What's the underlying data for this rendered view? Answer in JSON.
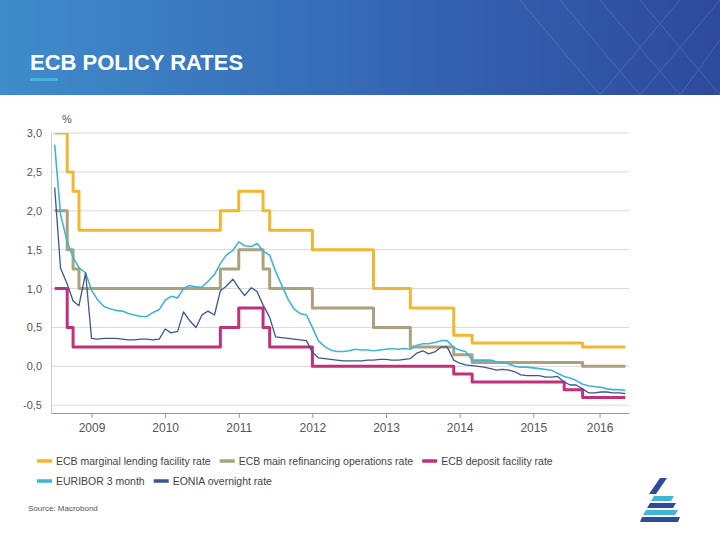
{
  "chart_data": {
    "type": "line",
    "title": "ECB POLICY RATES",
    "y_label": "%",
    "source": "Source: Macrobond",
    "legend": "bottom",
    "grid": true,
    "xlim": [
      2008.95,
      2016.8
    ],
    "xticks": [
      {
        "value": 2009.5,
        "label": "2009"
      },
      {
        "value": 2010.5,
        "label": "2010"
      },
      {
        "value": 2011.5,
        "label": "2011"
      },
      {
        "value": 2012.5,
        "label": "2012"
      },
      {
        "value": 2013.5,
        "label": "2013"
      },
      {
        "value": 2014.5,
        "label": "2014"
      },
      {
        "value": 2015.5,
        "label": "2015"
      },
      {
        "value": 2016.4,
        "label": "2016"
      }
    ],
    "ylim": [
      -0.6,
      3.0
    ],
    "yticks": [
      {
        "value": 3.0,
        "label": "3,0"
      },
      {
        "value": 2.5,
        "label": "2,5"
      },
      {
        "value": 2.0,
        "label": "2,0"
      },
      {
        "value": 1.5,
        "label": "1,5"
      },
      {
        "value": 1.0,
        "label": "1,0"
      },
      {
        "value": 0.5,
        "label": "0,5"
      },
      {
        "value": 0,
        "label": "0,0"
      },
      {
        "value": -0.5,
        "label": "-0,5"
      }
    ],
    "x": [
      2009,
      2009.08,
      2009.17,
      2009.25,
      2009.33,
      2009.42,
      2009.5,
      2009.58,
      2009.67,
      2009.75,
      2009.83,
      2009.92,
      2010,
      2010.08,
      2010.17,
      2010.25,
      2010.33,
      2010.42,
      2010.5,
      2010.58,
      2010.67,
      2010.75,
      2010.83,
      2010.92,
      2011,
      2011.08,
      2011.17,
      2011.25,
      2011.33,
      2011.42,
      2011.5,
      2011.58,
      2011.67,
      2011.75,
      2011.83,
      2011.92,
      2012,
      2012.08,
      2012.17,
      2012.25,
      2012.33,
      2012.42,
      2012.5,
      2012.58,
      2012.67,
      2012.75,
      2012.83,
      2012.92,
      2013,
      2013.08,
      2013.17,
      2013.25,
      2013.33,
      2013.42,
      2013.5,
      2013.58,
      2013.67,
      2013.75,
      2013.83,
      2013.92,
      2014,
      2014.08,
      2014.17,
      2014.25,
      2014.33,
      2014.42,
      2014.5,
      2014.58,
      2014.67,
      2014.75,
      2014.83,
      2014.92,
      2015,
      2015.08,
      2015.17,
      2015.25,
      2015.33,
      2015.42,
      2015.5,
      2015.58,
      2015.67,
      2015.75,
      2015.83,
      2015.92,
      2016,
      2016.08,
      2016.17,
      2016.25,
      2016.33,
      2016.42,
      2016.5,
      2016.58,
      2016.67,
      2016.75
    ],
    "series": [
      {
        "name": "ECB marginal lending facility rate",
        "color": "#f2b631",
        "type": "step",
        "values": [
          3,
          3,
          2.5,
          2.25,
          1.75,
          1.75,
          1.75,
          1.75,
          1.75,
          1.75,
          1.75,
          1.75,
          1.75,
          1.75,
          1.75,
          1.75,
          1.75,
          1.75,
          1.75,
          1.75,
          1.75,
          1.75,
          1.75,
          1.75,
          1.75,
          1.75,
          1.75,
          2,
          2,
          2,
          2.25,
          2.25,
          2.25,
          2.25,
          2,
          1.75,
          1.75,
          1.75,
          1.75,
          1.75,
          1.75,
          1.75,
          1.5,
          1.5,
          1.5,
          1.5,
          1.5,
          1.5,
          1.5,
          1.5,
          1.5,
          1.5,
          1,
          1,
          1,
          1,
          1,
          1,
          0.75,
          0.75,
          0.75,
          0.75,
          0.75,
          0.75,
          0.75,
          0.4,
          0.4,
          0.4,
          0.3,
          0.3,
          0.3,
          0.3,
          0.3,
          0.3,
          0.3,
          0.3,
          0.3,
          0.3,
          0.3,
          0.3,
          0.3,
          0.3,
          0.3,
          0.3,
          0.3,
          0.3,
          0.25,
          0.25,
          0.25,
          0.25,
          0.25,
          0.25,
          0.25,
          0.25
        ]
      },
      {
        "name": "ECB main refinancing operations rate",
        "color": "#a9a27c",
        "type": "step",
        "values": [
          2,
          2,
          1.5,
          1.25,
          1,
          1,
          1,
          1,
          1,
          1,
          1,
          1,
          1,
          1,
          1,
          1,
          1,
          1,
          1,
          1,
          1,
          1,
          1,
          1,
          1,
          1,
          1,
          1.25,
          1.25,
          1.25,
          1.5,
          1.5,
          1.5,
          1.5,
          1.25,
          1,
          1,
          1,
          1,
          1,
          1,
          1,
          0.75,
          0.75,
          0.75,
          0.75,
          0.75,
          0.75,
          0.75,
          0.75,
          0.75,
          0.75,
          0.5,
          0.5,
          0.5,
          0.5,
          0.5,
          0.5,
          0.25,
          0.25,
          0.25,
          0.25,
          0.25,
          0.25,
          0.25,
          0.15,
          0.15,
          0.15,
          0.05,
          0.05,
          0.05,
          0.05,
          0.05,
          0.05,
          0.05,
          0.05,
          0.05,
          0.05,
          0.05,
          0.05,
          0.05,
          0.05,
          0.05,
          0.05,
          0.05,
          0.05,
          0,
          0,
          0,
          0,
          0,
          0,
          0,
          0
        ]
      },
      {
        "name": "ECB deposit facility rate",
        "color": "#c1307b",
        "type": "step",
        "values": [
          1,
          1,
          0.5,
          0.25,
          0.25,
          0.25,
          0.25,
          0.25,
          0.25,
          0.25,
          0.25,
          0.25,
          0.25,
          0.25,
          0.25,
          0.25,
          0.25,
          0.25,
          0.25,
          0.25,
          0.25,
          0.25,
          0.25,
          0.25,
          0.25,
          0.25,
          0.25,
          0.5,
          0.5,
          0.5,
          0.75,
          0.75,
          0.75,
          0.75,
          0.5,
          0.25,
          0.25,
          0.25,
          0.25,
          0.25,
          0.25,
          0.25,
          0,
          0,
          0,
          0,
          0,
          0,
          0,
          0,
          0,
          0,
          0,
          0,
          0,
          0,
          0,
          0,
          0,
          0,
          0,
          0,
          0,
          0,
          0,
          -0.1,
          -0.1,
          -0.1,
          -0.2,
          -0.2,
          -0.2,
          -0.2,
          -0.2,
          -0.2,
          -0.2,
          -0.2,
          -0.2,
          -0.2,
          -0.2,
          -0.2,
          -0.2,
          -0.2,
          -0.2,
          -0.3,
          -0.3,
          -0.3,
          -0.4,
          -0.4,
          -0.4,
          -0.4,
          -0.4,
          -0.4,
          -0.4,
          -0.4
        ]
      },
      {
        "name": "EURIBOR 3 month",
        "color": "#3fb5d9",
        "type": "line",
        "values": [
          2.85,
          1.95,
          1.6,
          1.4,
          1.27,
          1.2,
          0.98,
          0.86,
          0.77,
          0.74,
          0.72,
          0.71,
          0.68,
          0.66,
          0.64,
          0.64,
          0.69,
          0.73,
          0.85,
          0.9,
          0.88,
          1.0,
          1.04,
          1.02,
          1.02,
          1.09,
          1.18,
          1.32,
          1.43,
          1.49,
          1.6,
          1.55,
          1.54,
          1.58,
          1.48,
          1.43,
          1.22,
          1.05,
          0.86,
          0.74,
          0.68,
          0.66,
          0.5,
          0.33,
          0.25,
          0.21,
          0.19,
          0.19,
          0.2,
          0.22,
          0.21,
          0.21,
          0.2,
          0.21,
          0.22,
          0.23,
          0.22,
          0.23,
          0.22,
          0.27,
          0.29,
          0.29,
          0.31,
          0.33,
          0.33,
          0.24,
          0.21,
          0.19,
          0.08,
          0.08,
          0.08,
          0.08,
          0.06,
          0.05,
          0.03,
          0,
          -0.01,
          -0.01,
          -0.02,
          -0.03,
          -0.04,
          -0.05,
          -0.09,
          -0.13,
          -0.15,
          -0.18,
          -0.23,
          -0.25,
          -0.26,
          -0.27,
          -0.29,
          -0.3,
          -0.3,
          -0.31
        ]
      },
      {
        "name": "EONIA overnight rate",
        "color": "#3e5594",
        "type": "line",
        "values": [
          2.3,
          1.26,
          1.06,
          0.84,
          0.78,
          1.2,
          0.36,
          0.35,
          0.36,
          0.36,
          0.36,
          0.35,
          0.34,
          0.34,
          0.35,
          0.35,
          0.34,
          0.35,
          0.48,
          0.43,
          0.45,
          0.7,
          0.59,
          0.5,
          0.66,
          0.71,
          0.66,
          0.97,
          1.03,
          1.12,
          1.01,
          0.91,
          1.01,
          0.96,
          0.79,
          0.63,
          0.38,
          0.37,
          0.36,
          0.35,
          0.34,
          0.33,
          0.18,
          0.11,
          0.1,
          0.09,
          0.08,
          0.07,
          0.07,
          0.07,
          0.07,
          0.08,
          0.08,
          0.09,
          0.09,
          0.08,
          0.08,
          0.09,
          0.1,
          0.17,
          0.2,
          0.16,
          0.19,
          0.25,
          0.25,
          0.08,
          0.04,
          0.02,
          0.01,
          0,
          -0.01,
          -0.03,
          -0.05,
          -0.04,
          -0.05,
          -0.07,
          -0.11,
          -0.12,
          -0.12,
          -0.12,
          -0.14,
          -0.14,
          -0.13,
          -0.2,
          -0.24,
          -0.24,
          -0.29,
          -0.34,
          -0.34,
          -0.33,
          -0.33,
          -0.34,
          -0.34,
          -0.35
        ]
      }
    ]
  }
}
